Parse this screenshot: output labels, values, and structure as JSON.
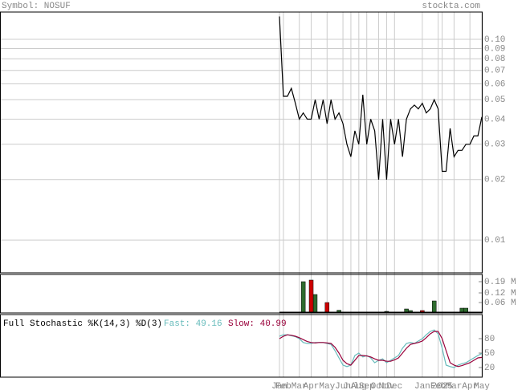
{
  "header": {
    "symbol": "Symbol: NOSUF",
    "site": "stockta.com"
  },
  "chart_data": [
    {
      "type": "line",
      "log_scale": true,
      "grid": true,
      "ylim": [
        0.00686,
        0.1368
      ],
      "yticks": [
        {
          "value": 0.1,
          "label": "0.10"
        },
        {
          "value": 0.09,
          "label": "0.09"
        },
        {
          "value": 0.08,
          "label": "0.08"
        },
        {
          "value": 0.07,
          "label": "0.07"
        },
        {
          "value": 0.06,
          "label": "0.06"
        },
        {
          "value": 0.05,
          "label": "0.05"
        },
        {
          "value": 0.04,
          "label": "0.04"
        },
        {
          "value": 0.03,
          "label": "0.03"
        },
        {
          "value": 0.02,
          "label": "0.02"
        },
        {
          "value": 0.01,
          "label": "0.01"
        }
      ],
      "series": [
        {
          "color": "#000000",
          "values": [
            0.13,
            0.052,
            0.052,
            0.057,
            0.048,
            0.04,
            0.043,
            0.04,
            0.04,
            0.05,
            0.04,
            0.05,
            0.038,
            0.05,
            0.04,
            0.043,
            0.038,
            0.03,
            0.026,
            0.035,
            0.03,
            0.053,
            0.03,
            0.04,
            0.035,
            0.02,
            0.04,
            0.02,
            0.04,
            0.03,
            0.04,
            0.026,
            0.04,
            0.045,
            0.047,
            0.045,
            0.048,
            0.043,
            0.045,
            0.05,
            0.045,
            0.022,
            0.022,
            0.036,
            0.026,
            0.028,
            0.028,
            0.03,
            0.03,
            0.033,
            0.033,
            0.041
          ]
        }
      ]
    },
    {
      "type": "bar",
      "grid": false,
      "ylim": [
        0,
        0.235
      ],
      "yticks": [
        {
          "value": 0.19,
          "label": "0.19 M"
        },
        {
          "value": 0.12,
          "label": "0.12 M"
        },
        {
          "value": 0.06,
          "label": "0.06 M"
        }
      ],
      "series": [
        {
          "color": "#2e6b2e",
          "values": [
            null,
            null,
            null,
            null,
            null,
            null,
            0.19,
            null,
            null,
            0.11,
            null,
            null,
            null,
            null,
            null,
            0.012,
            null,
            null,
            null,
            null,
            null,
            null,
            null,
            null,
            null,
            null,
            null,
            0.005,
            null,
            null,
            null,
            null,
            0.02,
            0.01,
            null,
            null,
            null,
            null,
            null,
            0.07,
            null,
            null,
            null,
            null,
            null,
            null,
            0.025,
            0.025,
            null,
            null,
            null,
            null
          ]
        },
        {
          "color": "#cc0000",
          "values": [
            null,
            null,
            null,
            null,
            null,
            null,
            null,
            null,
            0.2,
            null,
            null,
            null,
            0.06,
            null,
            null,
            null,
            null,
            null,
            null,
            null,
            null,
            null,
            null,
            null,
            null,
            null,
            null,
            null,
            null,
            null,
            null,
            null,
            null,
            null,
            null,
            null,
            0.01,
            null,
            null,
            null,
            null,
            null,
            null,
            null,
            null,
            null,
            null,
            null,
            null,
            null,
            null,
            null
          ]
        }
      ]
    },
    {
      "type": "line",
      "grid": false,
      "title": "Full Stochastic %K(14,3) %D(3)",
      "fast_label": "Fast: 49.16",
      "slow_label": "Slow: 40.99",
      "ylim": [
        0,
        130
      ],
      "yticks": [
        80,
        50,
        20
      ],
      "categories": [
        "Jan",
        "Feb",
        null,
        null,
        null,
        "Mar",
        null,
        null,
        "Apr",
        null,
        null,
        null,
        "May",
        null,
        null,
        null,
        "Jun",
        null,
        "Jul",
        null,
        "Aug",
        null,
        "Sep",
        null,
        null,
        "Oct",
        null,
        "Nov",
        null,
        "Dec",
        null,
        null,
        null,
        null,
        null,
        null,
        "Jan",
        null,
        null,
        null,
        "Feb",
        "2025",
        null,
        null,
        "Mar",
        null,
        null,
        null,
        "Apr",
        null,
        null,
        "May"
      ],
      "series": [
        {
          "color": "#66bbbb",
          "values": [
            85,
            88,
            88,
            86,
            84,
            80,
            72,
            70,
            70,
            72,
            72,
            72,
            70,
            68,
            55,
            40,
            25,
            22,
            25,
            45,
            50,
            42,
            45,
            40,
            30,
            35,
            38,
            30,
            35,
            40,
            45,
            60,
            70,
            72,
            70,
            75,
            80,
            88,
            95,
            98,
            90,
            60,
            25,
            22,
            20,
            25,
            28,
            30,
            35,
            40,
            45,
            49.16
          ]
        },
        {
          "color": "#99003a",
          "values": [
            80,
            85,
            88,
            87,
            85,
            82,
            78,
            74,
            72,
            71,
            72,
            72,
            71,
            70,
            62,
            50,
            35,
            28,
            25,
            35,
            45,
            45,
            44,
            42,
            38,
            35,
            35,
            33,
            33,
            36,
            40,
            50,
            60,
            68,
            70,
            72,
            75,
            82,
            90,
            95,
            95,
            80,
            55,
            30,
            25,
            22,
            24,
            27,
            30,
            35,
            40,
            40.99
          ]
        }
      ]
    }
  ]
}
